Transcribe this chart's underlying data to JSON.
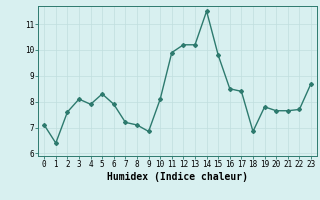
{
  "x": [
    0,
    1,
    2,
    3,
    4,
    5,
    6,
    7,
    8,
    9,
    10,
    11,
    12,
    13,
    14,
    15,
    16,
    17,
    18,
    19,
    20,
    21,
    22,
    23
  ],
  "y": [
    7.1,
    6.4,
    7.6,
    8.1,
    7.9,
    8.3,
    7.9,
    7.2,
    7.1,
    6.85,
    8.1,
    9.9,
    10.2,
    10.2,
    11.5,
    9.8,
    8.5,
    8.4,
    6.85,
    7.8,
    7.65,
    7.65,
    7.7,
    8.7
  ],
  "xlabel": "Humidex (Indice chaleur)",
  "ylim": [
    5.9,
    11.7
  ],
  "xlim": [
    -0.5,
    23.5
  ],
  "yticks": [
    6,
    7,
    8,
    9,
    10,
    11
  ],
  "xticks": [
    0,
    1,
    2,
    3,
    4,
    5,
    6,
    7,
    8,
    9,
    10,
    11,
    12,
    13,
    14,
    15,
    16,
    17,
    18,
    19,
    20,
    21,
    22,
    23
  ],
  "line_color": "#2d7a6e",
  "marker": "D",
  "marker_size": 2.0,
  "bg_color": "#d8f0f0",
  "grid_color": "#c0dede",
  "spine_color": "#2d7a6e",
  "tick_label_fontsize": 5.5,
  "xlabel_fontsize": 7.0,
  "line_width": 1.0
}
